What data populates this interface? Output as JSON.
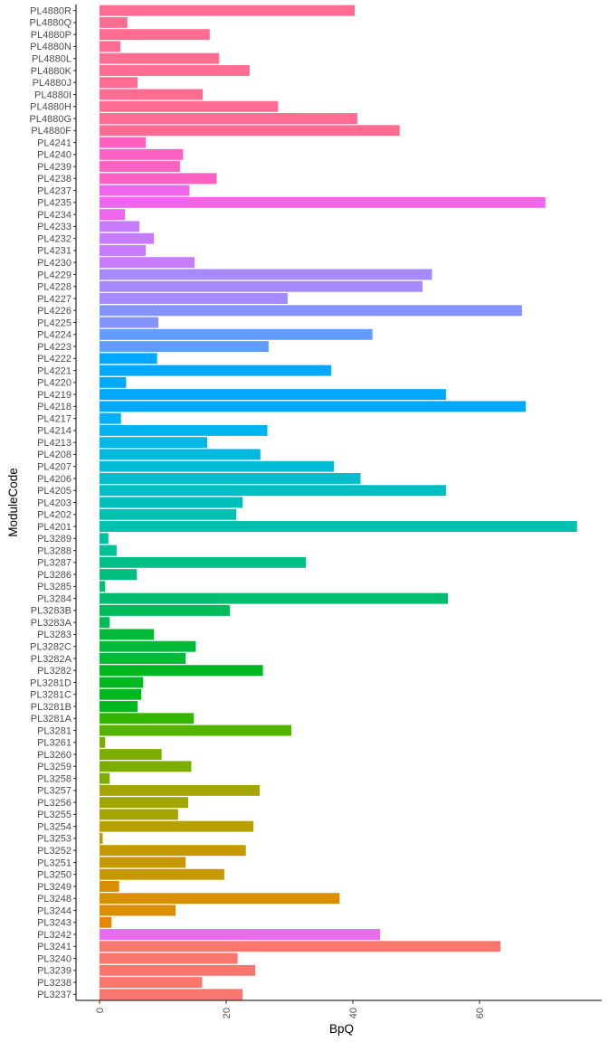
{
  "chart_data": {
    "type": "bar",
    "orientation": "horizontal",
    "title": "",
    "xlabel": "BpQ",
    "ylabel": "ModuleCode",
    "xlim": [
      0,
      77
    ],
    "x_ticks": [
      0,
      20,
      40,
      60
    ],
    "grid": false,
    "legend": "none",
    "categories": [
      "PL4880R",
      "PL4880Q",
      "PL4880P",
      "PL4880N",
      "PL4880L",
      "PL4880K",
      "PL4880J",
      "PL4880I",
      "PL4880H",
      "PL4880G",
      "PL4880F",
      "PL4241",
      "PL4240",
      "PL4239",
      "PL4238",
      "PL4237",
      "PL4235",
      "PL4234",
      "PL4233",
      "PL4232",
      "PL4231",
      "PL4230",
      "PL4229",
      "PL4228",
      "PL4227",
      "PL4226",
      "PL4225",
      "PL4224",
      "PL4223",
      "PL4222",
      "PL4221",
      "PL4220",
      "PL4219",
      "PL4218",
      "PL4217",
      "PL4214",
      "PL4213",
      "PL4208",
      "PL4207",
      "PL4206",
      "PL4205",
      "PL4203",
      "PL4202",
      "PL4201",
      "PL3289",
      "PL3288",
      "PL3287",
      "PL3286",
      "PL3285",
      "PL3284",
      "PL3283B",
      "PL3283A",
      "PL3283",
      "PL3282C",
      "PL3282A",
      "PL3282",
      "PL3281D",
      "PL3281C",
      "PL3281B",
      "PL3281A",
      "PL3281",
      "PL3261",
      "PL3260",
      "PL3259",
      "PL3258",
      "PL3257",
      "PL3256",
      "PL3255",
      "PL3254",
      "PL3253",
      "PL3252",
      "PL3251",
      "PL3250",
      "PL3249",
      "PL3248",
      "PL3244",
      "PL3243",
      "PL3242",
      "PL3241",
      "PL3240",
      "PL3239",
      "PL3238",
      "PL3237"
    ],
    "values": [
      40.3,
      4.4,
      17.4,
      3.3,
      18.9,
      23.7,
      6.0,
      16.3,
      28.2,
      40.7,
      47.4,
      7.3,
      13.2,
      12.7,
      18.5,
      14.2,
      70.4,
      4.0,
      6.3,
      8.6,
      7.3,
      15.0,
      52.5,
      51.0,
      29.7,
      66.7,
      9.3,
      43.1,
      26.7,
      9.1,
      36.6,
      4.2,
      54.7,
      67.3,
      3.4,
      26.5,
      17.0,
      25.4,
      37.0,
      41.2,
      54.7,
      22.6,
      21.6,
      75.4,
      1.4,
      2.7,
      32.6,
      5.9,
      0.9,
      55.0,
      20.6,
      1.6,
      8.6,
      15.2,
      13.6,
      25.8,
      6.9,
      6.6,
      6.0,
      14.9,
      30.3,
      0.9,
      9.8,
      14.5,
      1.6,
      25.3,
      14.0,
      12.4,
      24.3,
      0.5,
      23.1,
      13.6,
      19.7,
      3.1,
      37.9,
      12.0,
      1.9,
      44.3,
      63.3,
      21.8,
      24.6,
      16.2,
      22.6
    ],
    "colors": [
      "#FF6C91",
      "#FF6C91",
      "#FF6C91",
      "#FF6C91",
      "#FF6C91",
      "#FF6C91",
      "#FF6C91",
      "#FF6C91",
      "#FF6C91",
      "#FF6C91",
      "#FF6C91",
      "#FF61C3",
      "#FF61C3",
      "#FF61C3",
      "#FF61C3",
      "#F066EA",
      "#F066EA",
      "#F066EA",
      "#C77CFF",
      "#C77CFF",
      "#C77CFF",
      "#C77CFF",
      "#A58AFF",
      "#A58AFF",
      "#A58AFF",
      "#8494FF",
      "#8494FF",
      "#619CFF",
      "#619CFF",
      "#00A9FF",
      "#00A9FF",
      "#00A9FF",
      "#00A9FF",
      "#00A9FF",
      "#00B0F6",
      "#00B4EF",
      "#00B8E7",
      "#00BADF",
      "#00BCD6",
      "#00BECC",
      "#00BFC4",
      "#00BFBA",
      "#00C0AF",
      "#00C0AF",
      "#00C1A3",
      "#00C196",
      "#00C087",
      "#00BF7C",
      "#00BE70",
      "#00BE70",
      "#00BC56",
      "#00BC56",
      "#00BA38",
      "#00BA38",
      "#00BA38",
      "#00B81F",
      "#00B81F",
      "#00B81F",
      "#00B81F",
      "#33B600",
      "#53B400",
      "#7CAE00",
      "#7CAE00",
      "#7CAE00",
      "#7CAE00",
      "#A3A500",
      "#A3A500",
      "#A3A500",
      "#B79F00",
      "#BB9D00",
      "#C49A00",
      "#C49A00",
      "#C49A00",
      "#D89000",
      "#D89000",
      "#DB8E00",
      "#E38900",
      "#E76BF3",
      "#F8766D",
      "#F8766D",
      "#F8766D",
      "#F8766D",
      "#F8766D"
    ]
  }
}
